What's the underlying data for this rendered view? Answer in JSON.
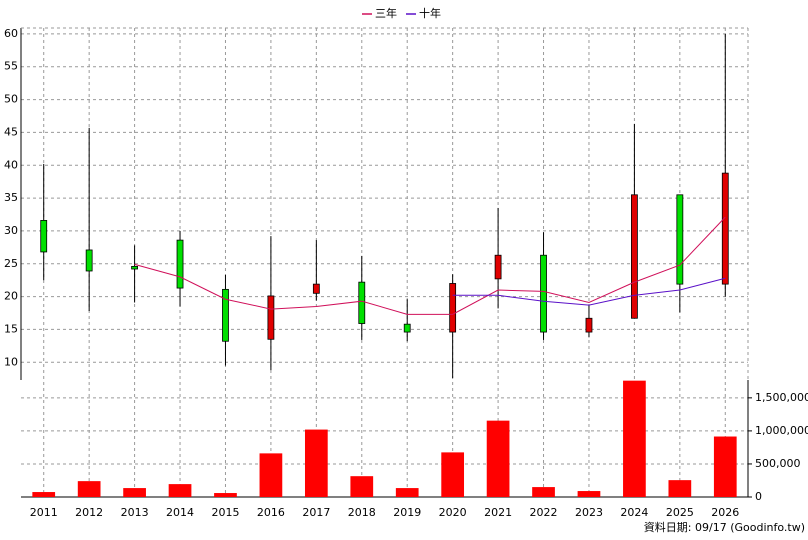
{
  "chart_data": {
    "type": "candlestick",
    "categories": [
      "2011",
      "2012",
      "2013",
      "2014",
      "2015",
      "2016",
      "2017",
      "2018",
      "2019",
      "2020",
      "2021",
      "2022",
      "2023",
      "2024",
      "2025",
      "2026"
    ],
    "candles": {
      "open": [
        31.6,
        27.1,
        24.6,
        28.6,
        21.1,
        13.5,
        20.5,
        22.2,
        15.8,
        14.6,
        22.7,
        26.3,
        14.6,
        16.7,
        35.5,
        21.9
      ],
      "close": [
        26.8,
        23.9,
        24.2,
        21.3,
        13.2,
        20.1,
        21.9,
        15.9,
        14.6,
        22.0,
        26.3,
        14.6,
        16.7,
        35.5,
        21.9,
        38.8
      ],
      "high": [
        40.2,
        45.7,
        27.8,
        30.0,
        23.3,
        29.2,
        28.6,
        26.2,
        19.6,
        23.4,
        33.5,
        29.8,
        18.7,
        46.3,
        35.5,
        60.0
      ],
      "low": [
        22.5,
        17.8,
        19.1,
        18.5,
        9.5,
        8.8,
        19.4,
        13.4,
        13.2,
        7.6,
        18.2,
        13.4,
        13.8,
        16.7,
        17.6,
        20.0
      ],
      "up_color": "#e00000",
      "down_color": "#00e000"
    },
    "series": [
      {
        "name": "三年",
        "color": "#d0105a",
        "values": [
          null,
          null,
          24.9,
          23.0,
          19.6,
          18.1,
          18.5,
          19.3,
          17.3,
          17.3,
          21.0,
          20.8,
          19.1,
          22.2,
          24.8,
          32.1
        ]
      },
      {
        "name": "十年",
        "color": "#5a10c8",
        "values": [
          null,
          null,
          null,
          null,
          null,
          null,
          null,
          null,
          null,
          20.2,
          20.2,
          19.3,
          18.7,
          20.2,
          21.0,
          22.8
        ]
      }
    ],
    "volume": {
      "color": "#ff0000",
      "values": [
        75000,
        240000,
        135000,
        195000,
        60000,
        660000,
        1020000,
        315000,
        135000,
        675000,
        1155000,
        150000,
        90000,
        1760000,
        255000,
        915000
      ]
    },
    "ylim": [
      7.3,
      60.9
    ],
    "yticks": [
      10,
      15,
      20,
      25,
      30,
      35,
      40,
      45,
      50,
      55,
      60
    ],
    "y2lim": [
      0,
      1770000
    ],
    "y2ticks": [
      0,
      {
        "value": 500000,
        "label": "500,000"
      },
      {
        "value": 1000000,
        "label": "1,000,000"
      },
      {
        "value": 1500000,
        "label": "1,500,000"
      }
    ],
    "grid": true,
    "footer": "資料日期: 09/17 (Goodinfo.tw)"
  }
}
